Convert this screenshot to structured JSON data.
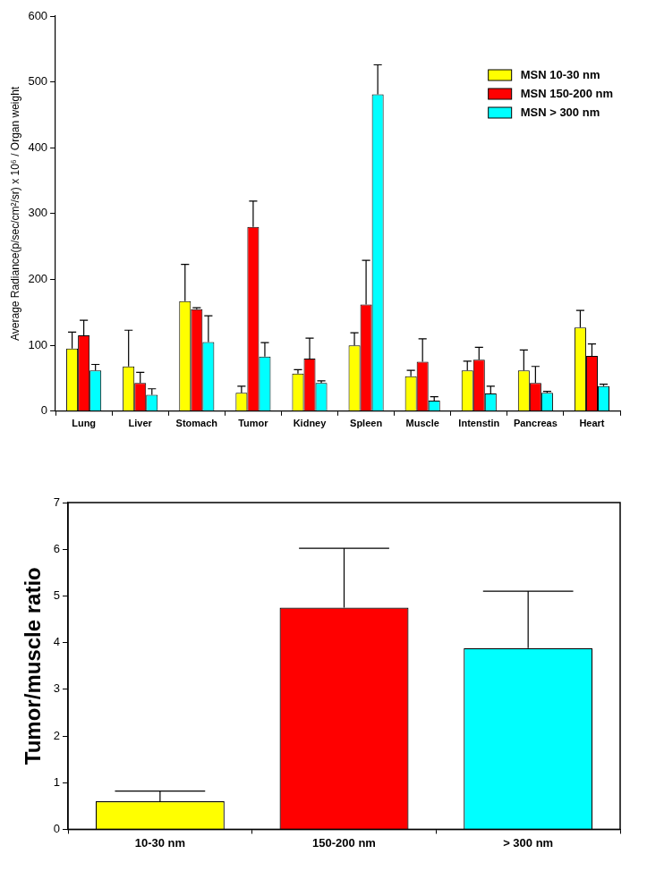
{
  "chart_data": [
    {
      "type": "bar",
      "y_label": "Average Radiance(p/sec/cm²/sr) x 10⁶ / Organ weight",
      "categories": [
        "Lung",
        "Liver",
        "Stomach",
        "Tumor",
        "Kidney",
        "Spleen",
        "Muscle",
        "Intenstin",
        "Pancreas",
        "Heart"
      ],
      "series": [
        {
          "name": "MSN 10-30 nm",
          "color": "#ffff00",
          "values": [
            95,
            68,
            167,
            28,
            57,
            100,
            53,
            62,
            62,
            127
          ],
          "errors": [
            25,
            55,
            56,
            10,
            6,
            19,
            9,
            14,
            31,
            26
          ]
        },
        {
          "name": "MSN 150-200 nm",
          "color": "#ff0000",
          "values": [
            115,
            43,
            155,
            280,
            80,
            162,
            75,
            78,
            43,
            84
          ],
          "errors": [
            23,
            16,
            2,
            39,
            31,
            67,
            35,
            19,
            25,
            18
          ]
        },
        {
          "name": "MSN > 300 nm",
          "color": "#00ffff",
          "values": [
            62,
            25,
            105,
            83,
            43,
            481,
            16,
            27,
            28,
            38
          ],
          "errors": [
            9,
            9,
            40,
            21,
            3,
            45,
            6,
            11,
            2,
            3
          ]
        }
      ],
      "ylim": [
        0,
        600
      ],
      "yticks": [
        0,
        100,
        200,
        300,
        400,
        500,
        600
      ],
      "grid": false,
      "legend": "upper right"
    },
    {
      "type": "bar",
      "y_label": "Tumor/muscle ratio",
      "categories": [
        "10-30 nm",
        "150-200 nm",
        "> 300 nm"
      ],
      "values": [
        0.6,
        4.75,
        3.88
      ],
      "errors": [
        0.22,
        1.27,
        1.22
      ],
      "colors": [
        "#ffff00",
        "#ff0000",
        "#00ffff"
      ],
      "ylim": [
        0,
        7
      ],
      "yticks": [
        0,
        1,
        2,
        3,
        4,
        5,
        6,
        7
      ],
      "grid": false
    }
  ]
}
